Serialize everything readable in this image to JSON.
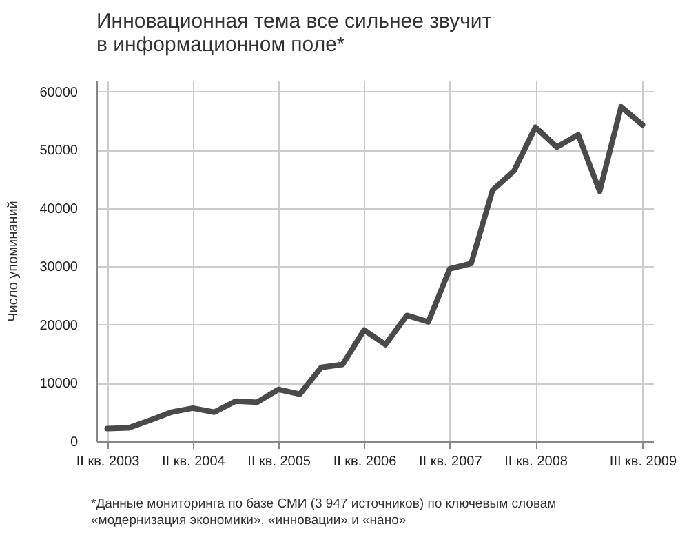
{
  "chart_data": {
    "type": "line",
    "title": "Инновационная тема все сильнее звучит в информационном поле*",
    "ylabel": "Число упоминаний",
    "categories": [
      "II кв. 2003",
      null,
      null,
      null,
      "II кв. 2004",
      null,
      null,
      null,
      "II кв. 2005",
      null,
      null,
      null,
      "II кв. 2006",
      null,
      null,
      null,
      "II кв. 2007",
      null,
      null,
      null,
      "II кв. 2008",
      null,
      null,
      null,
      null,
      "III кв. 2009"
    ],
    "series": [
      {
        "color": "#4a4a4a",
        "values": [
          2200,
          2300,
          3600,
          5000,
          5700,
          5000,
          6900,
          6700,
          8900,
          8100,
          12700,
          13200,
          19100,
          16600,
          21600,
          20500,
          29600,
          30500,
          43100,
          46400,
          53900,
          50500,
          52600,
          42900,
          57400,
          54300
        ]
      }
    ],
    "ylim": [
      0,
      62000
    ],
    "yticks": [
      0,
      10000,
      20000,
      30000,
      40000,
      50000,
      60000
    ],
    "grid": true,
    "marker": "none",
    "line_style": "solid",
    "annotations": [
      "*Данные мониторинга по базе СМИ (3 947 источников) по ключевым словам «модернизация экономики», «инновации» и «нано»"
    ]
  }
}
